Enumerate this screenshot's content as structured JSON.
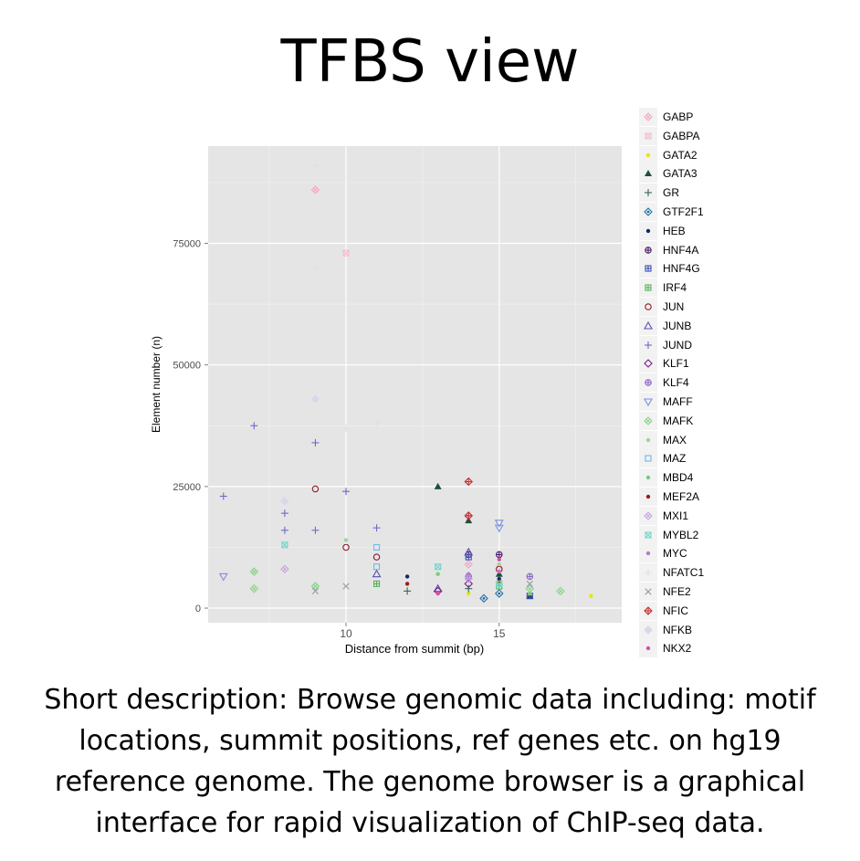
{
  "slide": {
    "title": "TFBS view",
    "description": "Short description: Browse genomic data including: motif locations, summit positions, ref genes etc. on hg19 reference genome.  The genome browser is a graphical interface for rapid visualization of ChIP-seq data."
  },
  "chart_data": {
    "type": "scatter",
    "title": "",
    "xlabel": "Distance from summit (bp)",
    "ylabel": "Element number (n)",
    "xlim": [
      5.5,
      19.0
    ],
    "ylim": [
      -3000,
      95000
    ],
    "xticks": [
      10,
      15
    ],
    "yticks": [
      0,
      25000,
      50000,
      75000
    ],
    "ytick_labels": [
      "0",
      "25000",
      "50000",
      "75000"
    ],
    "xtick_labels": [
      "10",
      "15"
    ],
    "grid": true,
    "legend_position": "right",
    "legend_truncated": true,
    "series": [
      {
        "name": "GABP",
        "color": "#f4a9c0",
        "symbol": "diamond-cross",
        "points": [
          [
            9,
            86000
          ],
          [
            14,
            9000
          ]
        ]
      },
      {
        "name": "GABPA",
        "color": "#f7bccb",
        "symbol": "square-cross",
        "points": [
          [
            10,
            73000
          ],
          [
            15,
            8000
          ]
        ]
      },
      {
        "name": "GATA2",
        "color": "#e6e600",
        "symbol": "dot",
        "points": [
          [
            18,
            2500
          ],
          [
            14,
            3000
          ]
        ]
      },
      {
        "name": "GATA3",
        "color": "#1f4e3d",
        "symbol": "triangle-filled",
        "points": [
          [
            13,
            25000
          ],
          [
            14,
            18000
          ],
          [
            15,
            7000
          ],
          [
            16,
            2500
          ]
        ]
      },
      {
        "name": "GR",
        "color": "#2e6b4f",
        "symbol": "plus",
        "points": [
          [
            12,
            3500
          ],
          [
            14,
            4000
          ]
        ]
      },
      {
        "name": "GTF2F1",
        "color": "#1f6fa8",
        "symbol": "diamond-dot",
        "points": [
          [
            14.5,
            2000
          ],
          [
            15,
            3000
          ]
        ]
      },
      {
        "name": "HEB",
        "color": "#13286b",
        "symbol": "dot",
        "points": [
          [
            12,
            6500
          ],
          [
            15,
            6000
          ]
        ]
      },
      {
        "name": "HNF4A",
        "color": "#4b1a6b",
        "symbol": "circle-plus",
        "points": [
          [
            14,
            11000
          ],
          [
            15,
            11000
          ]
        ]
      },
      {
        "name": "HNF4G",
        "color": "#3a4fb5",
        "symbol": "square-plus",
        "points": [
          [
            14,
            10500
          ],
          [
            16,
            2500
          ]
        ]
      },
      {
        "name": "IRF4",
        "color": "#56b356",
        "symbol": "square-plus",
        "points": [
          [
            11,
            5000
          ],
          [
            15,
            4500
          ]
        ]
      },
      {
        "name": "JUN",
        "color": "#8b1a2b",
        "symbol": "circle",
        "points": [
          [
            9,
            24500
          ],
          [
            10,
            12500
          ],
          [
            11,
            10500
          ],
          [
            15,
            8000
          ]
        ]
      },
      {
        "name": "JUNB",
        "color": "#5a4fb0",
        "symbol": "triangle",
        "points": [
          [
            11,
            7000
          ],
          [
            13,
            4000
          ],
          [
            14,
            11500
          ]
        ]
      },
      {
        "name": "JUND",
        "color": "#7468c8",
        "symbol": "plus",
        "points": [
          [
            6,
            23000
          ],
          [
            7,
            37500
          ],
          [
            8,
            19500
          ],
          [
            8,
            16000
          ],
          [
            9,
            34000
          ],
          [
            9,
            16000
          ],
          [
            10,
            24000
          ],
          [
            11,
            16500
          ],
          [
            14,
            19000
          ]
        ]
      },
      {
        "name": "KLF1",
        "color": "#7a1a8b",
        "symbol": "diamond",
        "points": [
          [
            13,
            3500
          ],
          [
            14,
            5000
          ]
        ]
      },
      {
        "name": "KLF4",
        "color": "#8a63c8",
        "symbol": "circle-plus",
        "points": [
          [
            14,
            6500
          ],
          [
            16,
            6500
          ]
        ]
      },
      {
        "name": "MAFF",
        "color": "#7b8fe0",
        "symbol": "triangle-down",
        "points": [
          [
            6,
            6500
          ],
          [
            15,
            17500
          ],
          [
            15,
            16500
          ]
        ]
      },
      {
        "name": "MAFK",
        "color": "#88d488",
        "symbol": "diamond-cross",
        "points": [
          [
            7,
            7500
          ],
          [
            7,
            4000
          ],
          [
            9,
            4500
          ],
          [
            16,
            4000
          ],
          [
            17,
            3500
          ]
        ]
      },
      {
        "name": "MAX",
        "color": "#9fd49f",
        "symbol": "dot",
        "points": [
          [
            10,
            14000
          ],
          [
            15,
            9000
          ]
        ]
      },
      {
        "name": "MAZ",
        "color": "#6fb8e8",
        "symbol": "square",
        "points": [
          [
            11,
            12500
          ],
          [
            11,
            8500
          ]
        ]
      },
      {
        "name": "MBD4",
        "color": "#7ec87e",
        "symbol": "dot",
        "points": [
          [
            13,
            7000
          ],
          [
            16,
            3000
          ]
        ]
      },
      {
        "name": "MEF2A",
        "color": "#9b1b1b",
        "symbol": "dot",
        "points": [
          [
            12,
            5000
          ],
          [
            15,
            5500
          ]
        ]
      },
      {
        "name": "MXI1",
        "color": "#c9a6e0",
        "symbol": "diamond-cross",
        "points": [
          [
            8,
            8000
          ],
          [
            14,
            6000
          ]
        ]
      },
      {
        "name": "MYBL2",
        "color": "#6fd8c8",
        "symbol": "square-cross",
        "points": [
          [
            8,
            13000
          ],
          [
            13,
            8500
          ],
          [
            15,
            5000
          ]
        ]
      },
      {
        "name": "MYC",
        "color": "#b57bc8",
        "symbol": "dot",
        "points": [
          [
            14,
            7000
          ],
          [
            15,
            7500
          ]
        ]
      },
      {
        "name": "NFATC1",
        "color": "#e0e0e0",
        "symbol": "plus",
        "points": [
          [
            9,
            91000
          ],
          [
            9,
            70000
          ],
          [
            10,
            37000
          ],
          [
            11,
            38000
          ]
        ]
      },
      {
        "name": "NFE2",
        "color": "#9a9aa8",
        "symbol": "cross",
        "points": [
          [
            9,
            3500
          ],
          [
            10,
            4500
          ],
          [
            16,
            5000
          ]
        ]
      },
      {
        "name": "NFIC",
        "color": "#c83030",
        "symbol": "diamond-plus",
        "points": [
          [
            14,
            26000
          ],
          [
            14,
            19000
          ]
        ]
      },
      {
        "name": "NFKB",
        "color": "#d8d8e8",
        "symbol": "diamond-filled",
        "points": [
          [
            9,
            43000
          ],
          [
            8,
            22000
          ]
        ]
      },
      {
        "name": "NKX2",
        "color": "#d8509b",
        "symbol": "dot",
        "points": [
          [
            15,
            10000
          ],
          [
            13,
            3000
          ]
        ]
      }
    ]
  }
}
